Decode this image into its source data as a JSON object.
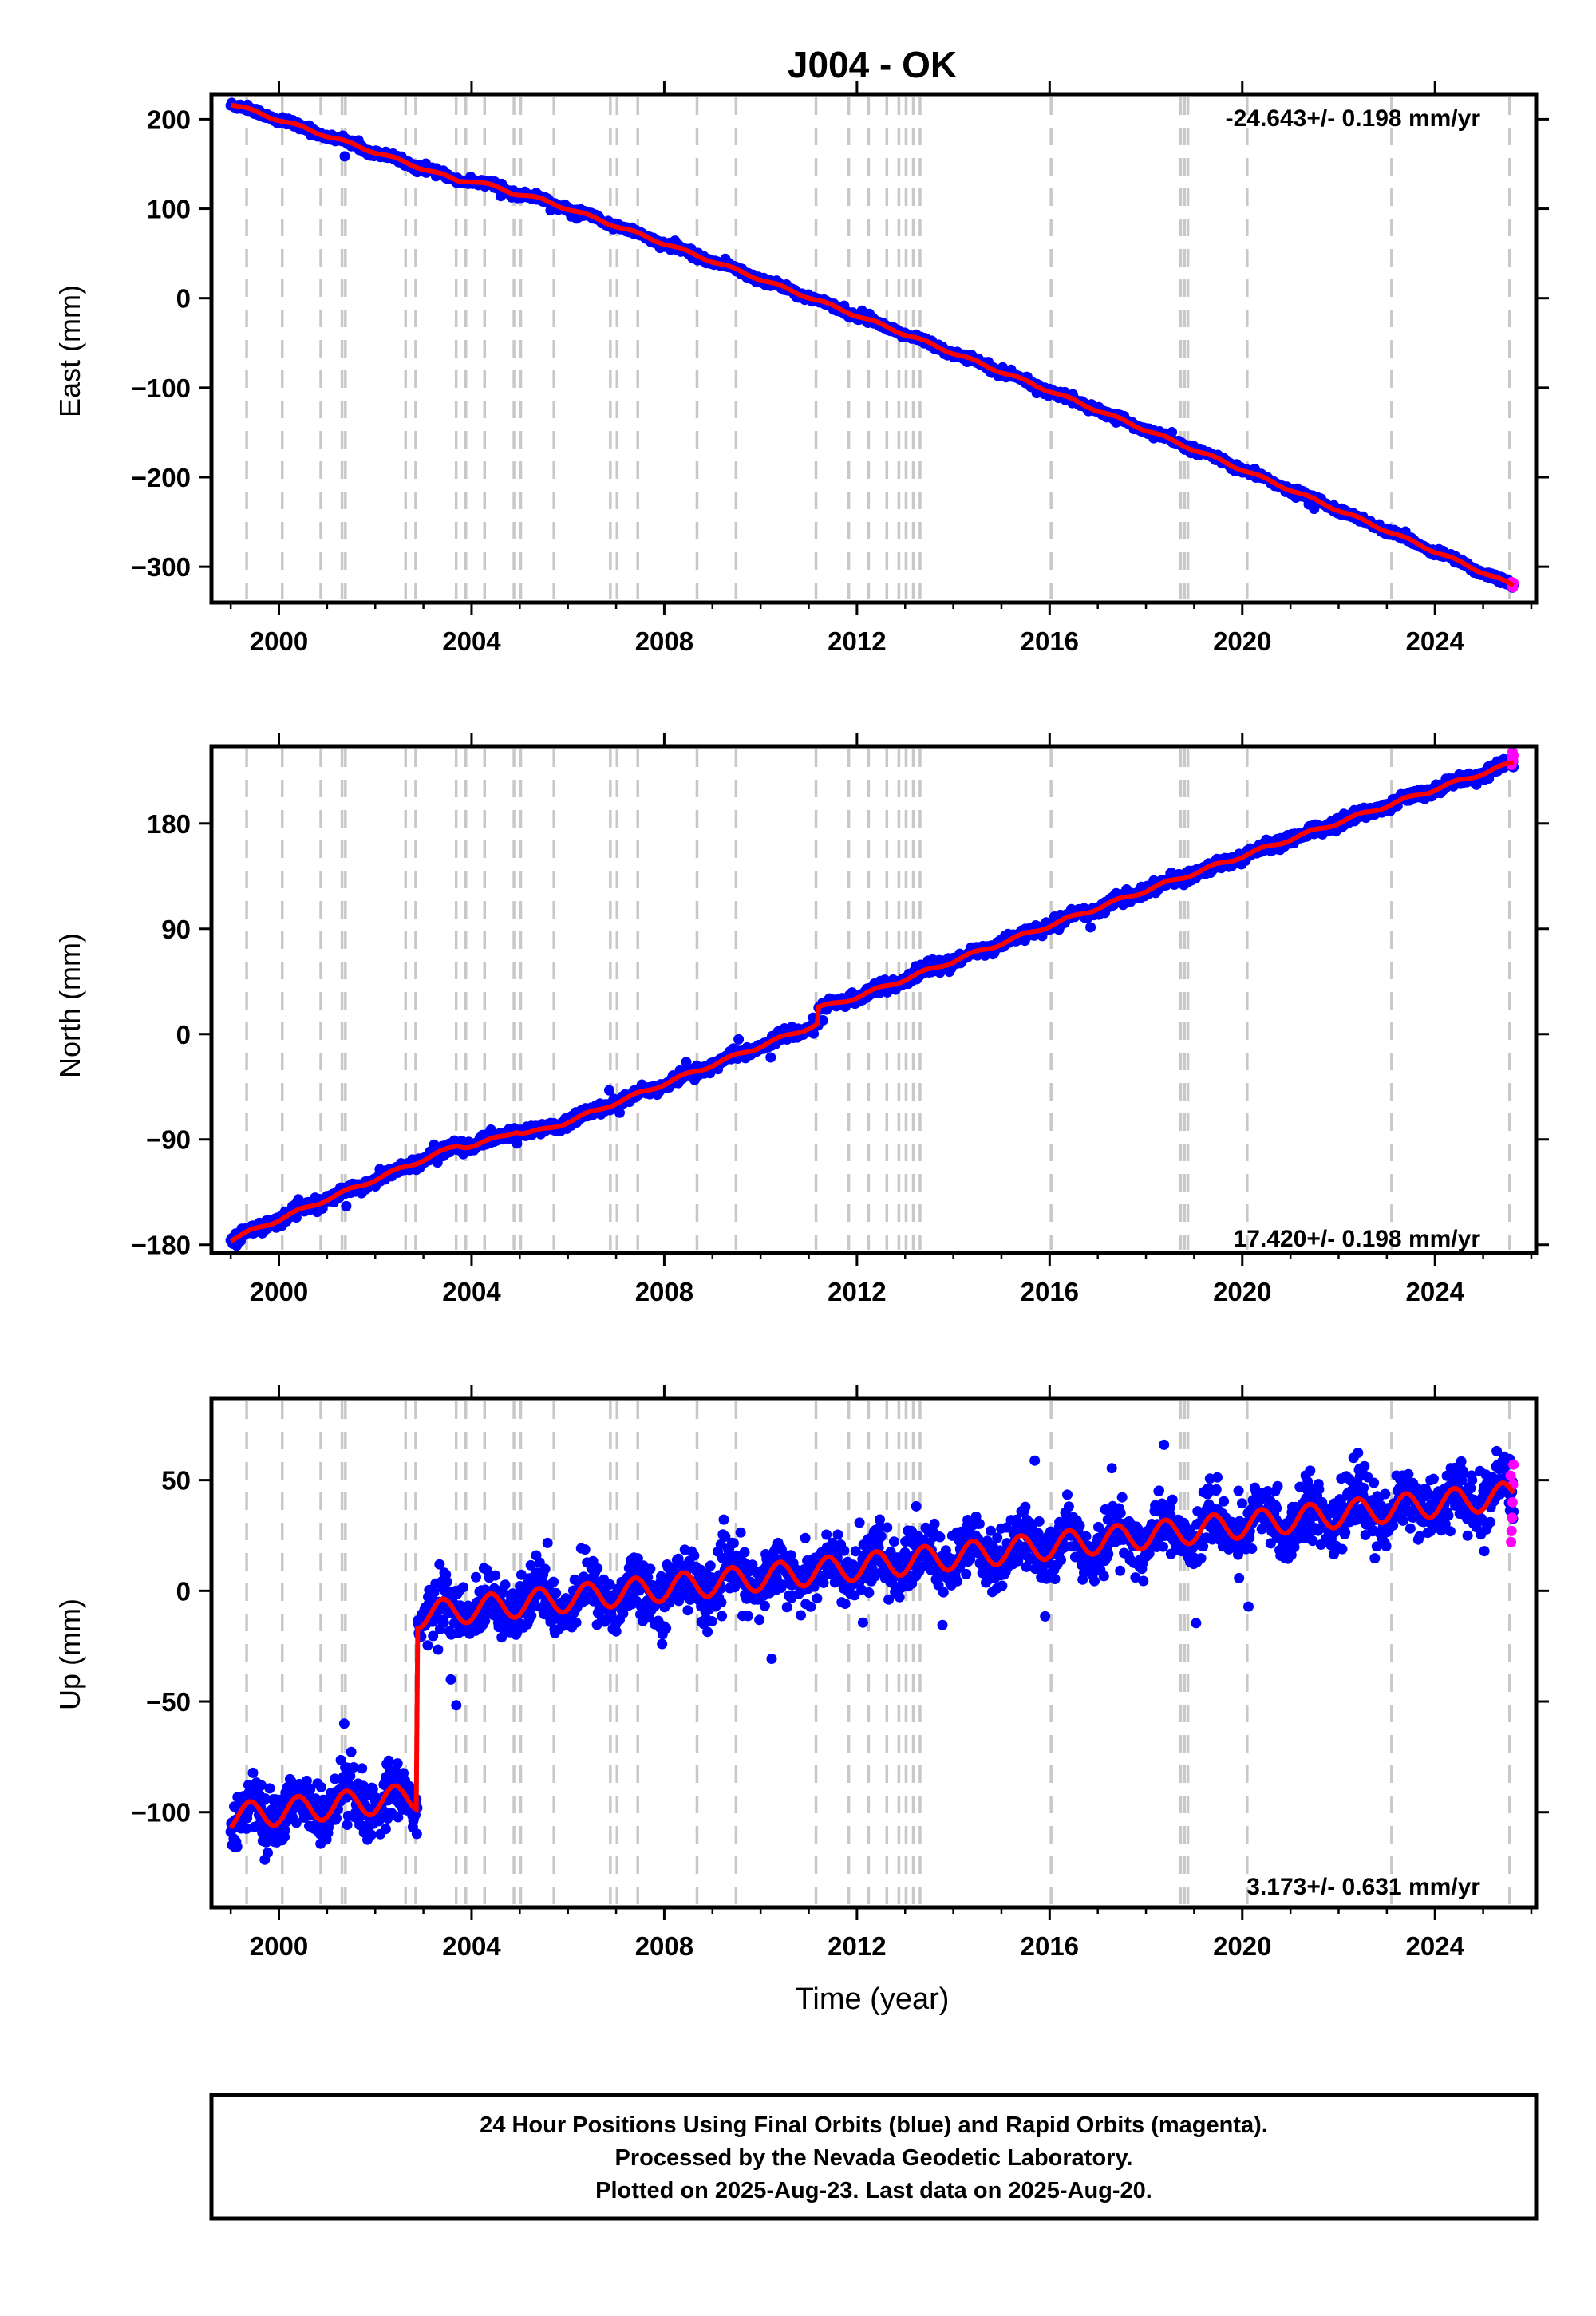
{
  "title": "J004 - OK",
  "xlabel": "Time (year)",
  "footer": [
    "24 Hour Positions Using Final Orbits (blue) and Rapid Orbits (magenta).",
    "Processed by the Nevada Geodetic Laboratory.",
    "Plotted on 2025-Aug-23. Last data on 2025-Aug-20."
  ],
  "colors": {
    "final": "#0000ff",
    "rapid": "#ff00ff",
    "model": "#ff0000",
    "event_lines": "#c8c8c8"
  },
  "chart_data": [
    {
      "type": "scatter",
      "name": "east",
      "ylabel": "East (mm)",
      "rate_label": "-24.643+/- 0.198 mm/yr",
      "xlim": [
        1998.6,
        2026.1
      ],
      "ylim": [
        -340,
        228
      ],
      "xticks": [
        2000,
        2004,
        2008,
        2012,
        2016,
        2020,
        2024
      ],
      "xtick_labels": [
        "2000",
        "2004",
        "2008",
        "2012",
        "2016",
        "2020",
        "2024"
      ],
      "yticks": [
        200,
        100,
        0,
        -100,
        -200,
        -300
      ],
      "ytick_labels": [
        "200",
        "100",
        "0",
        "−100",
        "−200",
        "−300"
      ],
      "start": 1999.0,
      "end": 2025.63,
      "start_value": 216,
      "end_value": -321,
      "rate": -24.643,
      "curvature": -0.15,
      "seasonal_amplitude": 1.5,
      "noise_sd": 1.8,
      "offsets": [
        [
          2003.72,
          8
        ],
        [
          2004.9,
          4
        ]
      ],
      "transients": [
        [
          2003.72,
          0.3,
          -8
        ],
        [
          2004.9,
          0.3,
          -4
        ]
      ],
      "rapid_end_values": [
        -318,
        -323,
        -320,
        -321,
        -317
      ]
    },
    {
      "type": "scatter",
      "name": "north",
      "ylabel": "North (mm)",
      "rate_label": "17.420+/- 0.198 mm/yr",
      "xlim": [
        1998.6,
        2026.1
      ],
      "ylim": [
        -187,
        246
      ],
      "xticks": [
        2000,
        2004,
        2008,
        2012,
        2016,
        2020,
        2024
      ],
      "xtick_labels": [
        "2000",
        "2004",
        "2008",
        "2012",
        "2016",
        "2020",
        "2024"
      ],
      "yticks": [
        180,
        90,
        0,
        -90,
        -180
      ],
      "ytick_labels": [
        "180",
        "90",
        "0",
        "−90",
        "−180"
      ],
      "start": 1999.0,
      "end": 2025.63,
      "start_value": -177,
      "end_value": 232,
      "rate": 17.42,
      "curvature": 0.12,
      "seasonal_amplitude": 1.5,
      "noise_sd": 2.3,
      "offsets": [
        [
          2003.72,
          -8
        ],
        [
          2004.93,
          -10
        ],
        [
          2011.2,
          10
        ]
      ],
      "transients": [
        [
          2003.72,
          0.3,
          8
        ],
        [
          2004.93,
          0.3,
          10
        ],
        [
          2011.2,
          0.4,
          4
        ]
      ],
      "rapid_end_values": [
        238,
        234,
        241,
        236,
        230
      ]
    },
    {
      "type": "scatter",
      "name": "up",
      "ylabel": "Up (mm)",
      "rate_label": "3.173+/- 0.631 mm/yr",
      "xlim": [
        1998.6,
        2026.1
      ],
      "ylim": [
        -143,
        87
      ],
      "xticks": [
        2000,
        2004,
        2008,
        2012,
        2016,
        2020,
        2024
      ],
      "xtick_labels": [
        "2000",
        "2004",
        "2008",
        "2012",
        "2016",
        "2020",
        "2024"
      ],
      "yticks": [
        50,
        0,
        -50,
        -100
      ],
      "ytick_labels": [
        "50",
        "0",
        "−50",
        "−100"
      ],
      "start": 1999.0,
      "end": 2025.63,
      "start_value": -107,
      "end_value": 44,
      "rate": 3.173,
      "curvature": 0,
      "seasonal_amplitude": 6,
      "noise_sd": 6.5,
      "offsets": [
        [
          2002.88,
          82
        ]
      ],
      "transients": [],
      "rapid_end_values": [
        57,
        48,
        40,
        33,
        27,
        22,
        52
      ]
    }
  ],
  "event_lines": [
    1999.33,
    2000.07,
    2000.87,
    2001.31,
    2001.38,
    2002.63,
    2002.84,
    2003.68,
    2003.88,
    2004.27,
    2004.88,
    2005.02,
    2005.71,
    2006.88,
    2007.02,
    2007.45,
    2008.68,
    2009.49,
    2011.15,
    2011.83,
    2012.24,
    2012.62,
    2012.87,
    2013.02,
    2013.17,
    2013.31,
    2016.03,
    2018.72,
    2018.8,
    2018.87,
    2020.1,
    2023.1,
    2025.55
  ]
}
